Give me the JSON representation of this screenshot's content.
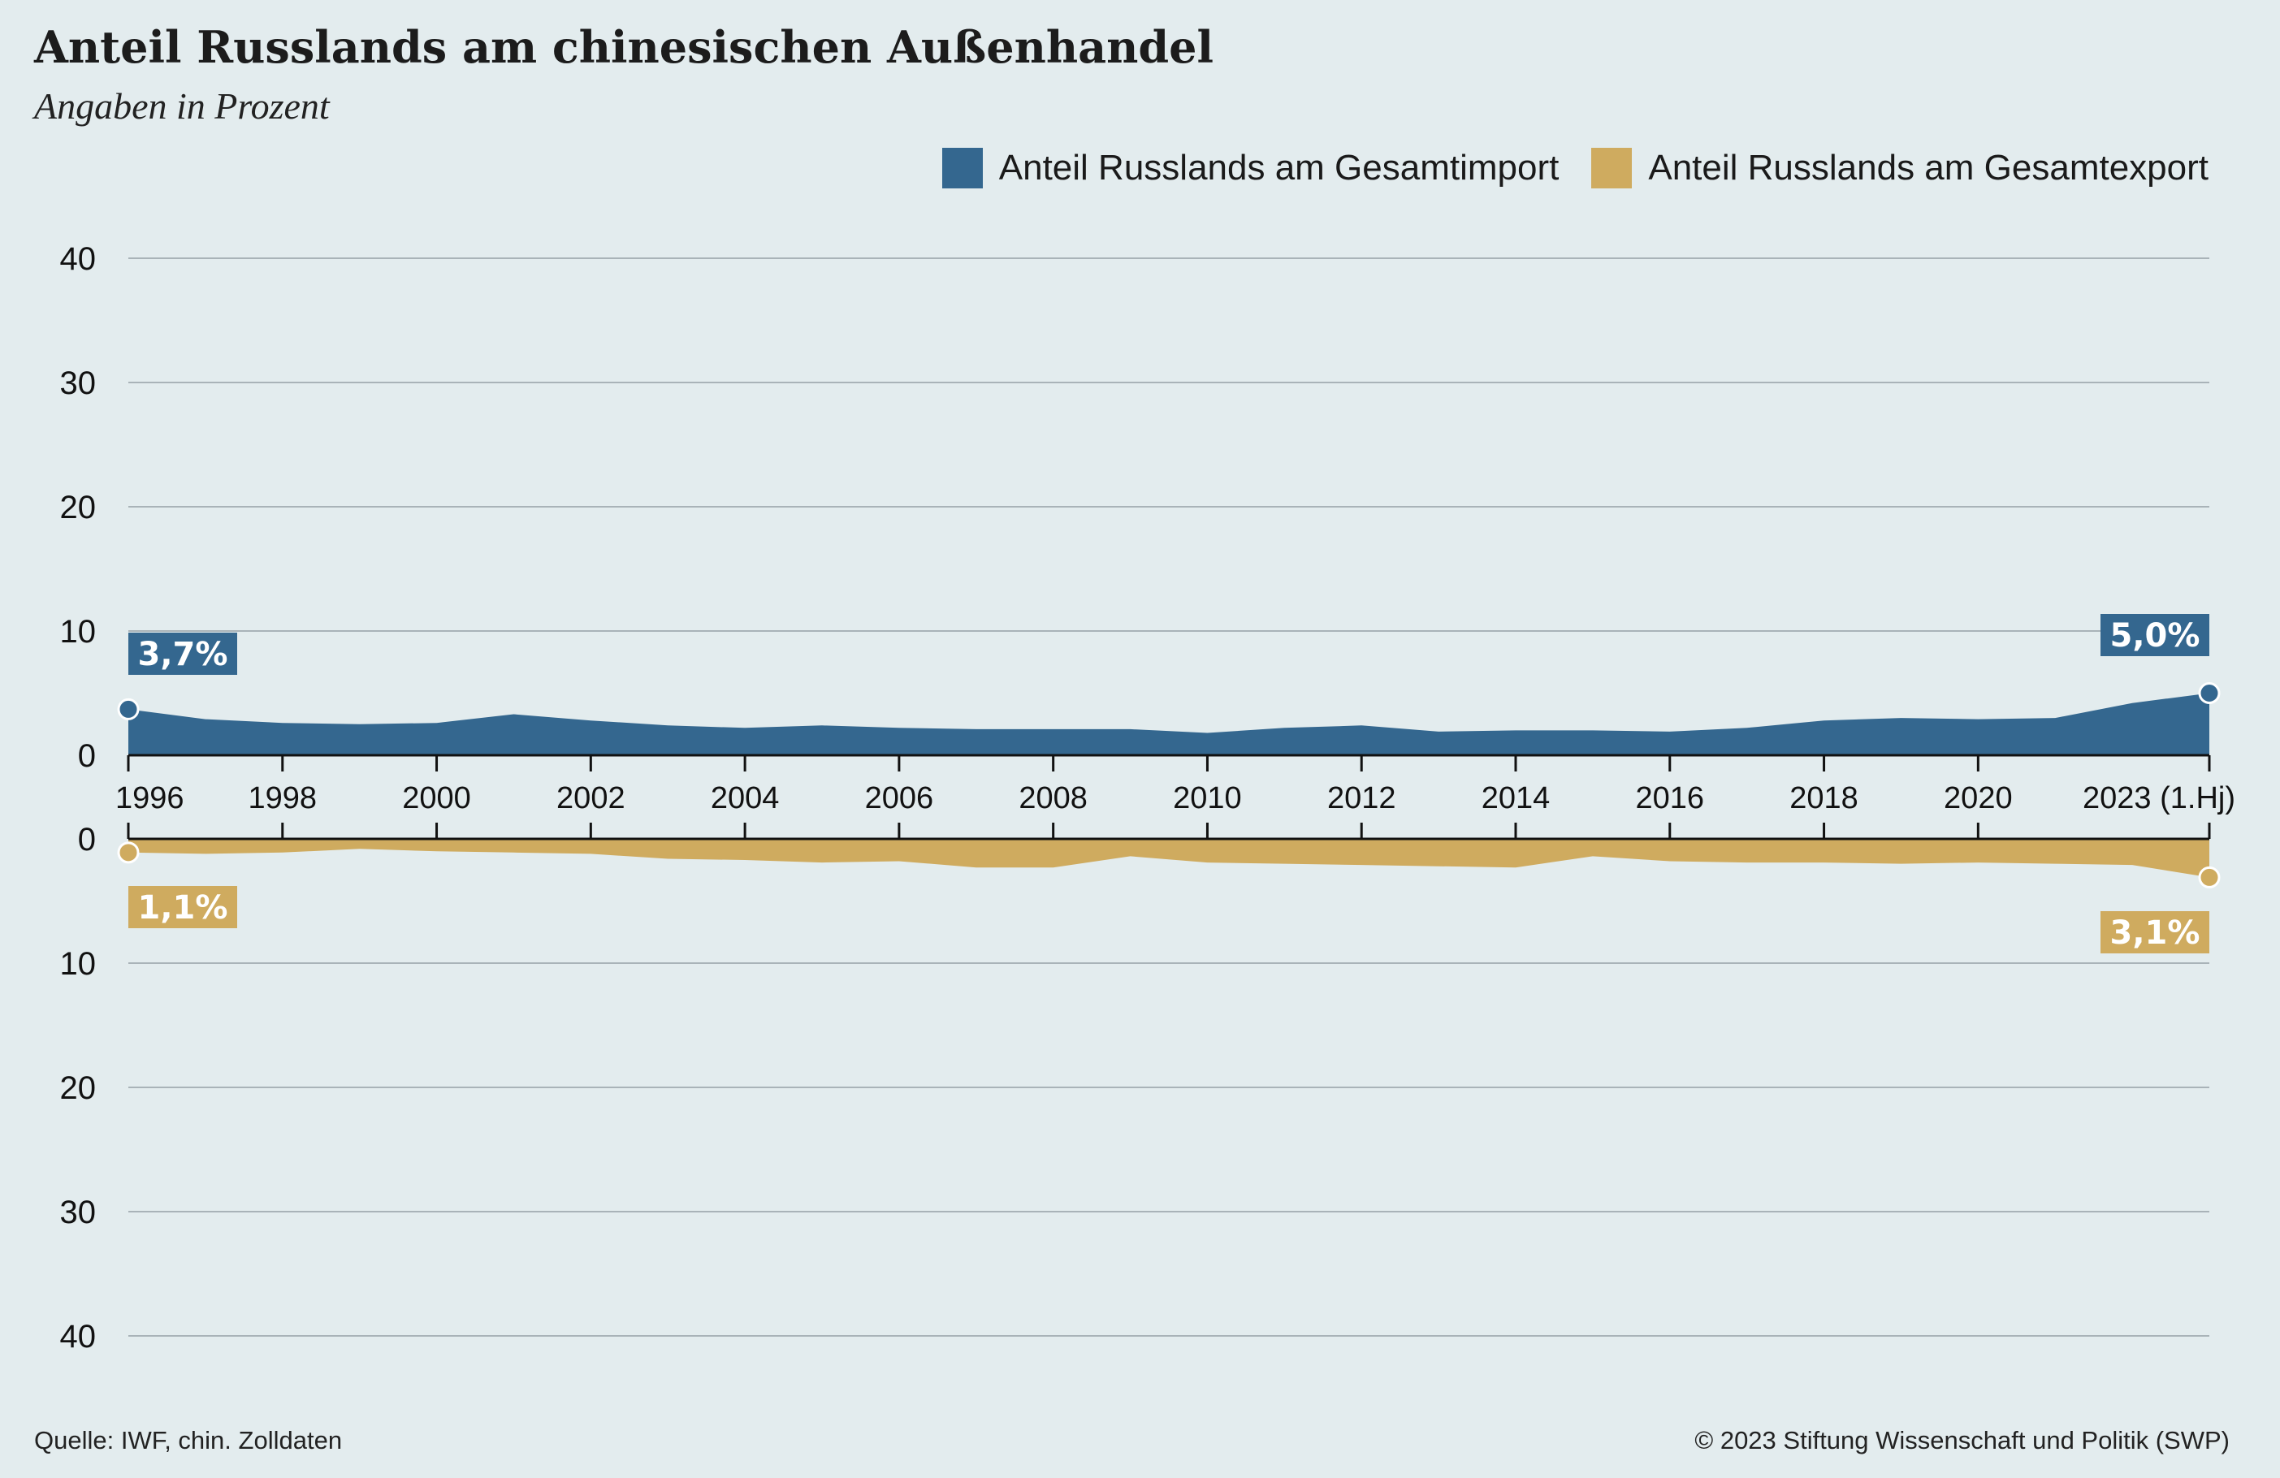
{
  "title": "Anteil Russlands am chinesischen Außenhandel",
  "subtitle": "Angaben in Prozent",
  "footer": {
    "source": "Quelle: IWF, chin. Zolldaten",
    "copyright": "© 2023 Stiftung Wissenschaft und Politik (SWP)"
  },
  "colors": {
    "import": "#34678f",
    "export": "#cfab5f",
    "background": "#e3ecee",
    "grid": "#a9b3b8"
  },
  "chart_data": {
    "type": "area",
    "x": [
      1996,
      1997,
      1998,
      1999,
      2000,
      2001,
      2002,
      2003,
      2004,
      2005,
      2006,
      2007,
      2008,
      2009,
      2010,
      2011,
      2012,
      2013,
      2014,
      2015,
      2016,
      2017,
      2018,
      2019,
      2020,
      2021,
      2022,
      2023
    ],
    "x_tick_labels": [
      "1996",
      "1998",
      "2000",
      "2002",
      "2004",
      "2006",
      "2008",
      "2010",
      "2012",
      "2014",
      "2016",
      "2018",
      "2020",
      "2023 (1.Hj)"
    ],
    "x_tick_values": [
      1996,
      1998,
      2000,
      2002,
      2004,
      2006,
      2008,
      2010,
      2012,
      2014,
      2016,
      2018,
      2020,
      2023
    ],
    "import_ticks": [
      "40",
      "30",
      "20",
      "10",
      "0"
    ],
    "export_ticks": [
      "0",
      "10",
      "20",
      "30",
      "40"
    ],
    "ylim": [
      0,
      40
    ],
    "grid": true,
    "legend_position": "top-right",
    "series": [
      {
        "name": "Anteil Russlands am Gesamtimport",
        "direction": "up",
        "values": [
          3.7,
          2.9,
          2.6,
          2.5,
          2.6,
          3.3,
          2.8,
          2.4,
          2.2,
          2.4,
          2.2,
          2.1,
          2.1,
          2.1,
          1.8,
          2.2,
          2.4,
          1.9,
          2.0,
          2.0,
          1.9,
          2.2,
          2.8,
          3.0,
          2.9,
          3.0,
          4.2,
          5.0
        ],
        "callouts": {
          "first": "3,7%",
          "last": "5,0%"
        }
      },
      {
        "name": "Anteil Russlands am Gesamtexport",
        "direction": "down",
        "values": [
          1.1,
          1.2,
          1.1,
          0.8,
          1.0,
          1.1,
          1.2,
          1.6,
          1.7,
          1.9,
          1.8,
          2.3,
          2.3,
          1.4,
          1.9,
          2.0,
          2.1,
          2.2,
          2.3,
          1.4,
          1.8,
          1.9,
          1.9,
          2.0,
          1.9,
          2.0,
          2.1,
          3.1
        ],
        "callouts": {
          "first": "1,1%",
          "last": "3,1%"
        }
      }
    ]
  }
}
